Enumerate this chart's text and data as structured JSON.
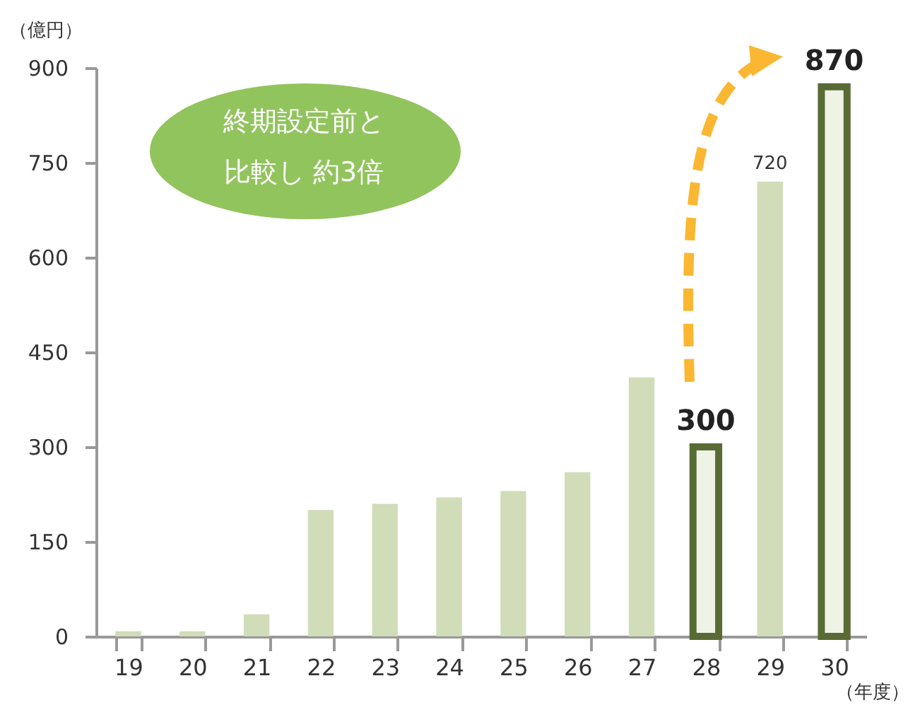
{
  "chart_data": {
    "type": "bar",
    "categories": [
      "19",
      "20",
      "21",
      "22",
      "23",
      "24",
      "25",
      "26",
      "27",
      "28",
      "29",
      "30"
    ],
    "values": [
      8,
      8,
      35,
      200,
      210,
      220,
      230,
      260,
      410,
      300,
      720,
      870
    ],
    "colors": [
      "#d0ddb8",
      "#d0ddb8",
      "#d0ddb8",
      "#d0ddb8",
      "#d0ddb8",
      "#d0ddb8",
      "#d0ddb8",
      "#d0ddb8",
      "#d0ddb8",
      "#586b34",
      "#d0ddb8",
      "#586b34"
    ],
    "value_labels": [
      null,
      null,
      null,
      null,
      null,
      null,
      null,
      null,
      null,
      "300",
      "720",
      "870"
    ],
    "ylabel": "（億円）",
    "xlabel": "（年度）",
    "ylim": [
      0,
      900
    ],
    "yticks": [
      0,
      150,
      300,
      450,
      600,
      750,
      900
    ],
    "annotations": [
      "終期設定前と",
      "比較し 約3倍"
    ],
    "grid": false
  }
}
